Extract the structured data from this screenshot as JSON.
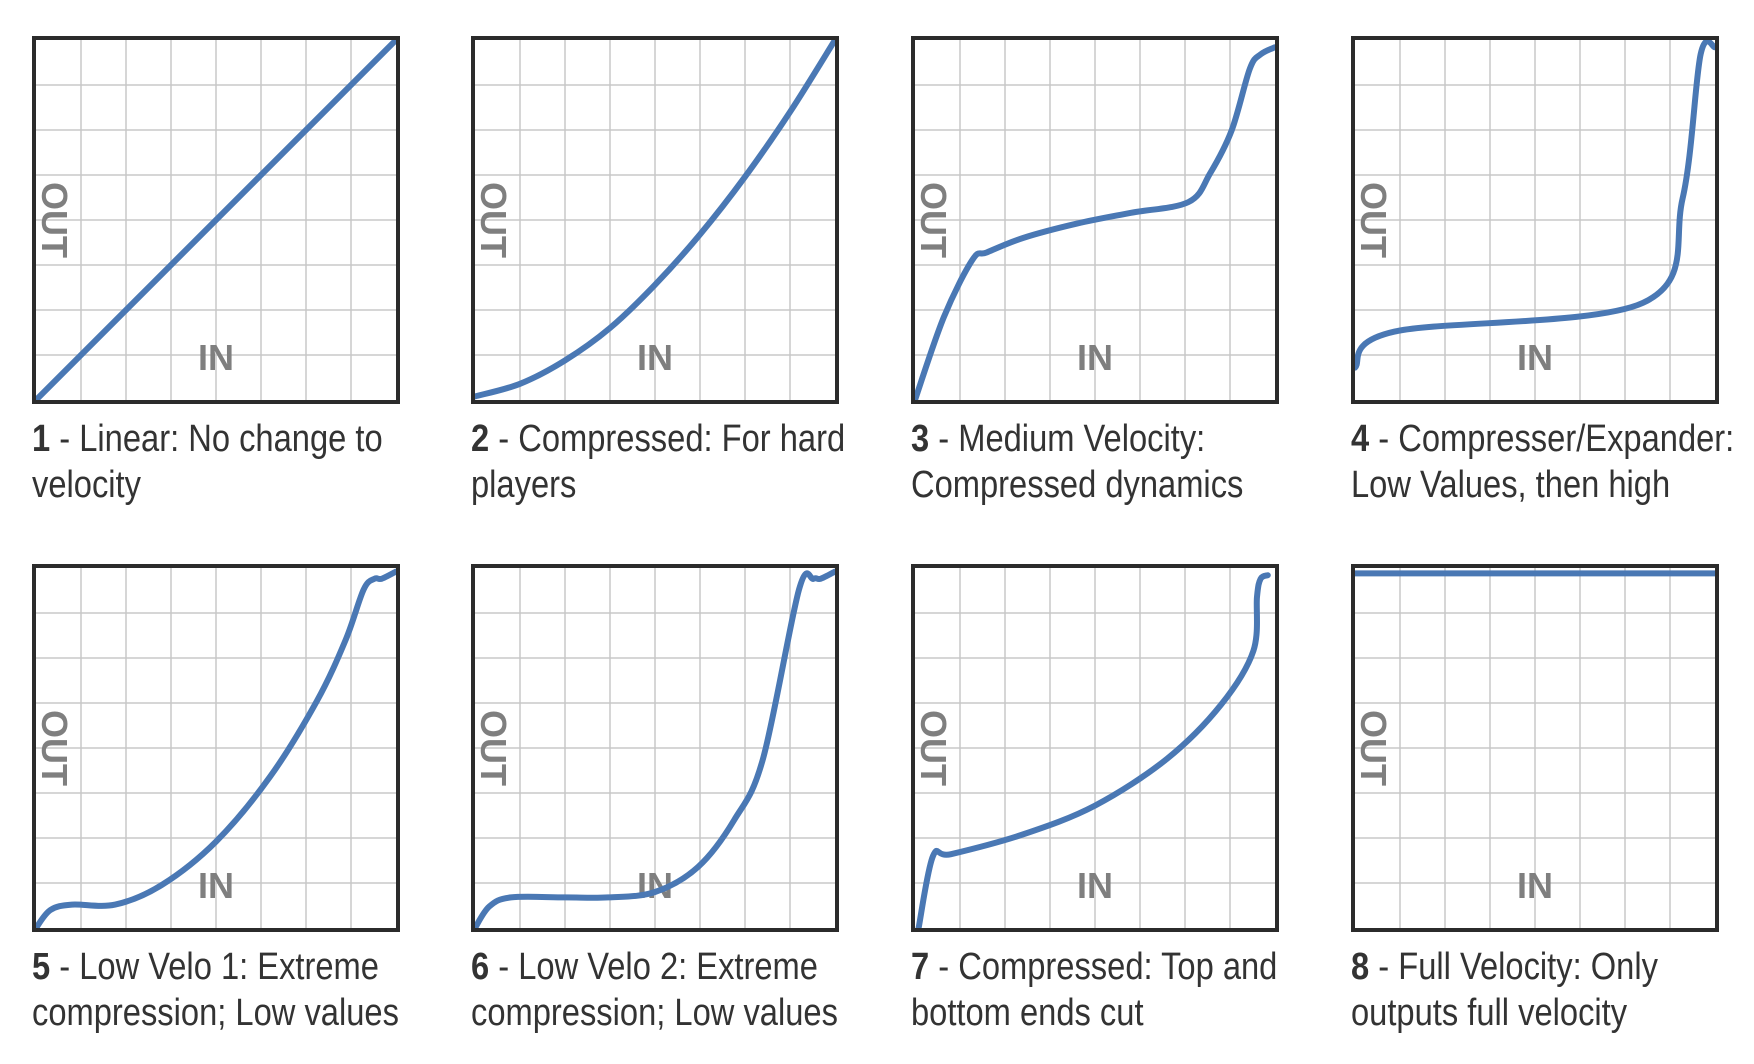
{
  "colors": {
    "curve": "#4A78B4",
    "grid": "#C8C8C8",
    "frame": "#2B2B2B",
    "axis_label": "#7F7F7F",
    "caption": "#333333"
  },
  "chart_data": [
    {
      "type": "line",
      "number": "1",
      "caption_line1": "Linear: No change to",
      "caption_line2": "velocity",
      "xlabel": "IN",
      "ylabel": "OUT",
      "xlim": [
        0,
        1
      ],
      "ylim": [
        0,
        1
      ],
      "grid": true,
      "grid_divisions": 8,
      "x": [
        0,
        1
      ],
      "y": [
        0,
        1
      ]
    },
    {
      "type": "line",
      "number": "2",
      "caption_line1": "Compressed: For hard",
      "caption_line2": "players",
      "xlabel": "IN",
      "ylabel": "OUT",
      "xlim": [
        0,
        1
      ],
      "ylim": [
        0,
        1
      ],
      "grid": true,
      "grid_divisions": 8,
      "x": [
        0,
        0.125,
        0.25,
        0.375,
        0.5,
        0.625,
        0.75,
        0.875,
        1
      ],
      "y": [
        0.01,
        0.045,
        0.11,
        0.2,
        0.32,
        0.46,
        0.62,
        0.8,
        1
      ]
    },
    {
      "type": "line",
      "number": "3",
      "caption_line1": "Medium Velocity:",
      "caption_line2": "Compressed dynamics",
      "xlabel": "IN",
      "ylabel": "OUT",
      "xlim": [
        0,
        1
      ],
      "ylim": [
        0,
        1
      ],
      "grid": true,
      "grid_divisions": 8,
      "x": [
        0,
        0.08,
        0.16,
        0.2,
        0.3,
        0.45,
        0.6,
        0.76,
        0.82,
        0.88,
        0.93,
        0.96,
        1
      ],
      "y": [
        0,
        0.23,
        0.39,
        0.41,
        0.45,
        0.49,
        0.52,
        0.55,
        0.63,
        0.75,
        0.92,
        0.96,
        0.98
      ]
    },
    {
      "type": "line",
      "number": "4",
      "caption_line1": "Compresser/Expander:",
      "caption_line2": "Low Values, then high",
      "xlabel": "IN",
      "ylabel": "OUT",
      "xlim": [
        0,
        1
      ],
      "ylim": [
        0,
        1
      ],
      "grid": true,
      "grid_divisions": 8,
      "x": [
        0,
        0.11,
        0.8,
        0.91,
        0.96,
        1
      ],
      "y": [
        0.09,
        0.19,
        0.27,
        0.56,
        0.96,
        0.98
      ]
    },
    {
      "type": "line",
      "number": "5",
      "caption_line1": "Low Velo 1: Extreme",
      "caption_line2": "compression; Low values",
      "xlabel": "IN",
      "ylabel": "OUT",
      "xlim": [
        0,
        1
      ],
      "ylim": [
        0,
        1
      ],
      "grid": true,
      "grid_divisions": 8,
      "x": [
        0,
        0.04,
        0.1,
        0.22,
        0.35,
        0.5,
        0.65,
        0.78,
        0.86,
        0.91,
        0.94,
        0.96,
        1
      ],
      "y": [
        0,
        0.05,
        0.065,
        0.065,
        0.12,
        0.24,
        0.42,
        0.63,
        0.8,
        0.94,
        0.97,
        0.97,
        0.99
      ]
    },
    {
      "type": "line",
      "number": "6",
      "caption_line1": "Low Velo 2: Extreme",
      "caption_line2": "compression; Low values",
      "xlabel": "IN",
      "ylabel": "OUT",
      "xlim": [
        0,
        1
      ],
      "ylim": [
        0,
        1
      ],
      "grid": true,
      "grid_divisions": 8,
      "x": [
        0,
        0.04,
        0.1,
        0.25,
        0.37,
        0.5,
        0.62,
        0.72,
        0.8,
        0.9,
        0.94,
        0.96,
        1
      ],
      "y": [
        0,
        0.06,
        0.085,
        0.085,
        0.085,
        0.1,
        0.17,
        0.3,
        0.47,
        0.94,
        0.97,
        0.97,
        0.99
      ]
    },
    {
      "type": "line",
      "number": "7",
      "caption_line1": "Compressed: Top and",
      "caption_line2": "bottom ends cut",
      "xlabel": "IN",
      "ylabel": "OUT",
      "xlim": [
        0,
        1
      ],
      "ylim": [
        0,
        1
      ],
      "grid": true,
      "grid_divisions": 8,
      "x": [
        0.01,
        0.05,
        0.1,
        0.3,
        0.5,
        0.7,
        0.85,
        0.94,
        0.95,
        0.96,
        0.98
      ],
      "y": [
        0,
        0.2,
        0.205,
        0.26,
        0.34,
        0.47,
        0.62,
        0.77,
        0.92,
        0.97,
        0.98
      ]
    },
    {
      "type": "line",
      "number": "8",
      "caption_line1": "Full Velocity: Only",
      "caption_line2": "outputs full velocity",
      "xlabel": "IN",
      "ylabel": "OUT",
      "xlim": [
        0,
        1
      ],
      "ylim": [
        0,
        1
      ],
      "grid": true,
      "grid_divisions": 8,
      "x": [
        0,
        1
      ],
      "y": [
        0.985,
        0.985
      ]
    }
  ]
}
